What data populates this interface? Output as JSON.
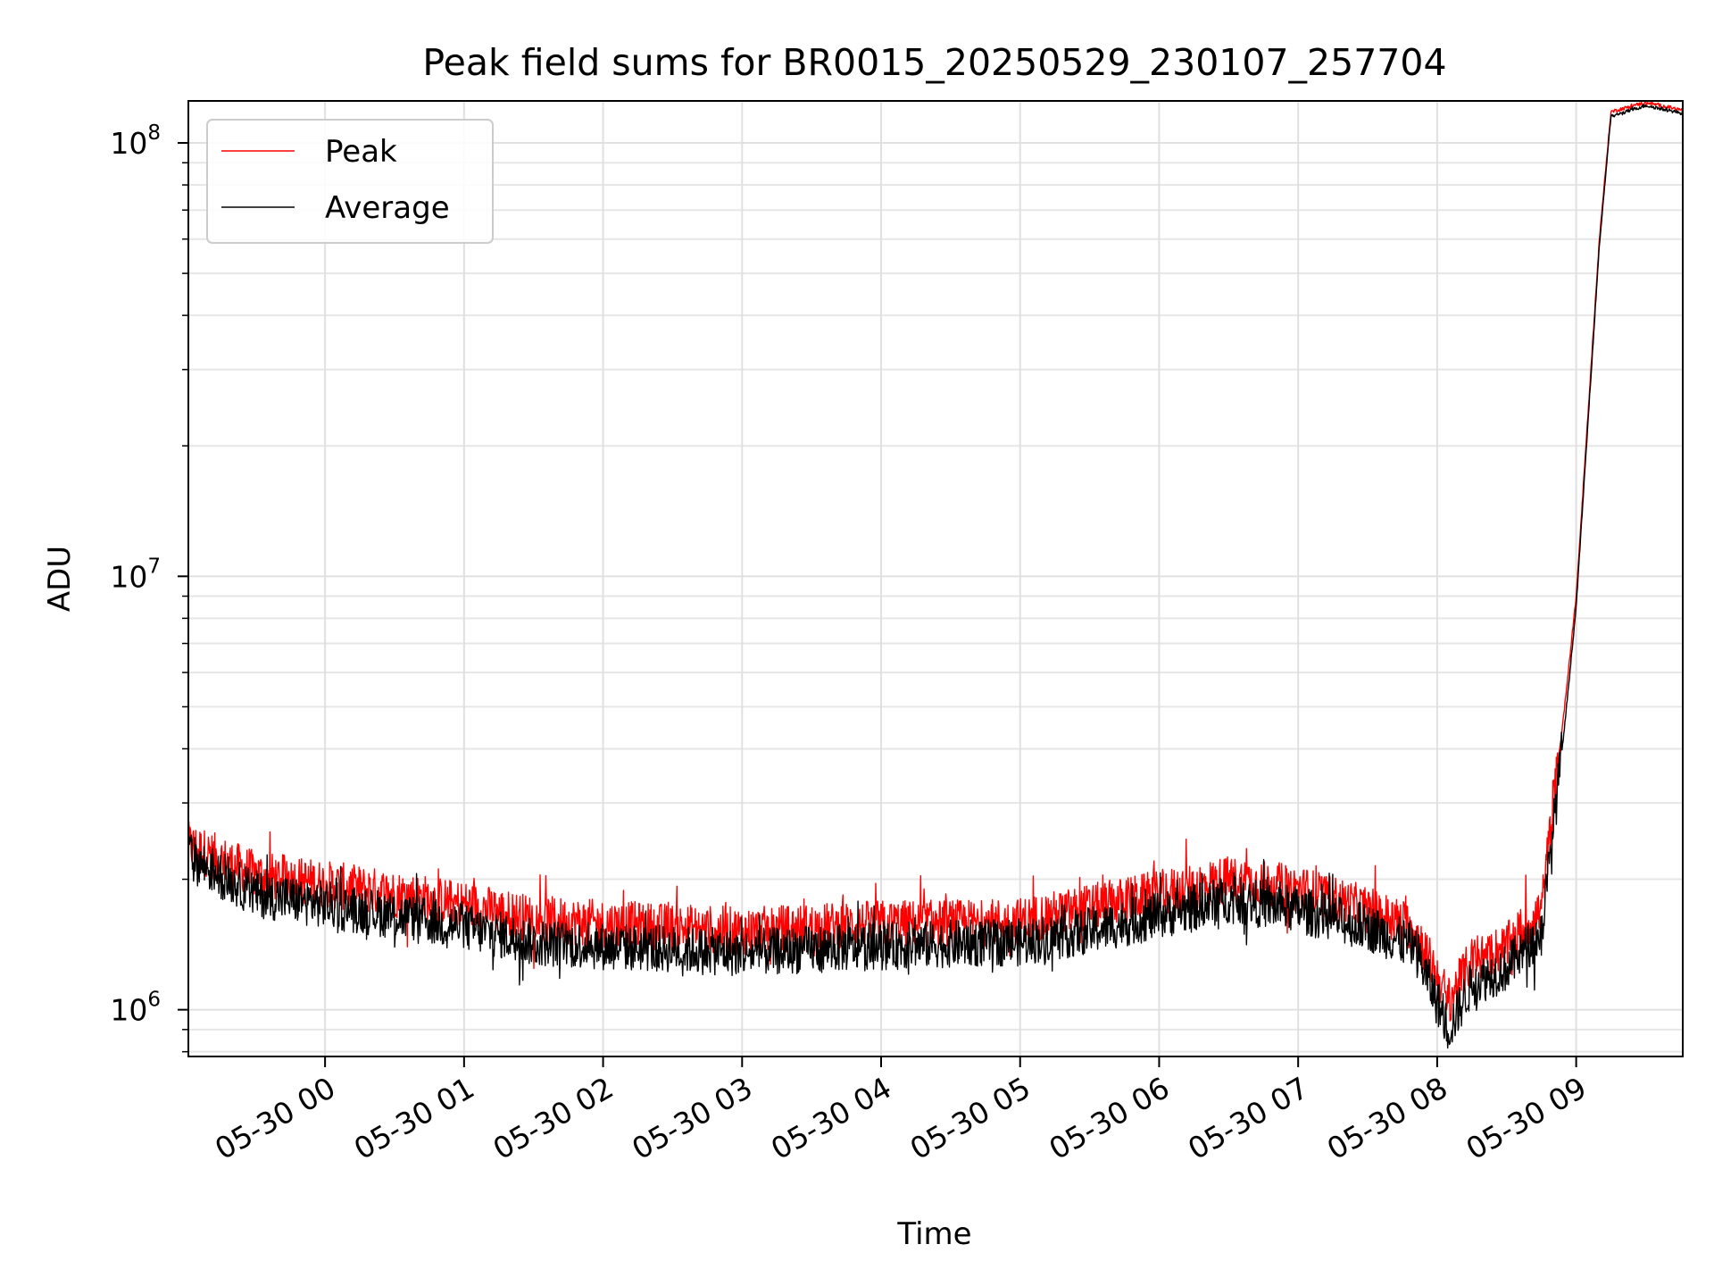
{
  "chart_data": {
    "type": "line",
    "title": "Peak field sums for BR0015_20250529_230107_257704",
    "xlabel": "Time",
    "ylabel": "ADU",
    "yscale": "log",
    "ylim": [
      780000,
      125000000
    ],
    "xlim": [
      "2025-05-29 23:01",
      "2025-05-30 09:46"
    ],
    "x_ticks": [
      "05-30 00",
      "05-30 01",
      "05-30 02",
      "05-30 03",
      "05-30 04",
      "05-30 05",
      "05-30 06",
      "05-30 07",
      "05-30 08",
      "05-30 09"
    ],
    "y_ticks": [
      {
        "base": "10",
        "exp": "6",
        "value": 1000000
      },
      {
        "base": "10",
        "exp": "7",
        "value": 10000000
      },
      {
        "base": "10",
        "exp": "8",
        "value": 100000000
      }
    ],
    "grid": true,
    "legend_position": "upper-left",
    "series": [
      {
        "name": "Peak",
        "color": "#ff0000",
        "x": [
          "2025-05-29 23:01",
          "2025-05-29 23:30",
          "2025-05-30 00:00",
          "2025-05-30 00:30",
          "2025-05-30 01:00",
          "2025-05-30 01:30",
          "2025-05-30 02:00",
          "2025-05-30 02:30",
          "2025-05-30 03:00",
          "2025-05-30 03:30",
          "2025-05-30 04:00",
          "2025-05-30 04:30",
          "2025-05-30 05:00",
          "2025-05-30 05:30",
          "2025-05-30 06:00",
          "2025-05-30 06:30",
          "2025-05-30 07:00",
          "2025-05-30 07:30",
          "2025-05-30 07:50",
          "2025-05-30 08:05",
          "2025-05-30 08:15",
          "2025-05-30 08:30",
          "2025-05-30 08:45",
          "2025-05-30 08:55",
          "2025-05-30 09:00",
          "2025-05-30 09:10",
          "2025-05-30 09:15",
          "2025-05-30 09:30",
          "2025-05-30 09:46"
        ],
        "y": [
          2400000,
          2050000,
          1950000,
          1850000,
          1750000,
          1620000,
          1580000,
          1550000,
          1520000,
          1550000,
          1580000,
          1580000,
          1600000,
          1720000,
          1850000,
          2000000,
          1900000,
          1700000,
          1550000,
          1050000,
          1300000,
          1400000,
          1700000,
          5000000,
          9000000,
          60000000,
          118000000,
          124000000,
          119000000
        ]
      },
      {
        "name": "Average",
        "color": "#000000",
        "x": [
          "2025-05-29 23:01",
          "2025-05-29 23:30",
          "2025-05-30 00:00",
          "2025-05-30 00:30",
          "2025-05-30 01:00",
          "2025-05-30 01:30",
          "2025-05-30 02:00",
          "2025-05-30 02:30",
          "2025-05-30 03:00",
          "2025-05-30 03:30",
          "2025-05-30 04:00",
          "2025-05-30 04:30",
          "2025-05-30 05:00",
          "2025-05-30 05:30",
          "2025-05-30 06:00",
          "2025-05-30 06:30",
          "2025-05-30 07:00",
          "2025-05-30 07:30",
          "2025-05-30 07:50",
          "2025-05-30 08:05",
          "2025-05-30 08:15",
          "2025-05-30 08:30",
          "2025-05-30 08:45",
          "2025-05-30 08:55",
          "2025-05-30 09:00",
          "2025-05-30 09:10",
          "2025-05-30 09:15",
          "2025-05-30 09:30",
          "2025-05-30 09:46"
        ],
        "y": [
          2250000,
          1850000,
          1750000,
          1650000,
          1550000,
          1430000,
          1400000,
          1380000,
          1350000,
          1380000,
          1400000,
          1420000,
          1430000,
          1520000,
          1650000,
          1800000,
          1700000,
          1550000,
          1400000,
          900000,
          1150000,
          1250000,
          1500000,
          4500000,
          8500000,
          58000000,
          115000000,
          122000000,
          117000000
        ]
      }
    ]
  }
}
